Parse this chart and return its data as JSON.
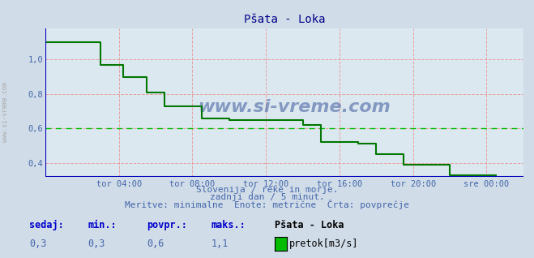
{
  "title": "Pšata - Loka",
  "bg_color": "#d0dce8",
  "plot_bg_color": "#dce8f0",
  "grid_color": "#e8a0a0",
  "axis_color": "#0000bb",
  "avg_line_color": "#00bb00",
  "avg_line_value": 0.6,
  "line_color": "#007700",
  "arrow_color": "#aa0000",
  "ylim": [
    0.32,
    1.18
  ],
  "yticks": [
    0.4,
    0.6,
    0.8,
    1.0
  ],
  "tick_label_color": "#4466aa",
  "xtick_labels": [
    "tor 04:00",
    "tor 08:00",
    "tor 12:00",
    "tor 16:00",
    "tor 20:00",
    "sre 00:00"
  ],
  "xtick_positions": [
    4,
    8,
    12,
    16,
    20,
    24
  ],
  "xlim": [
    0,
    26
  ],
  "subtitle1": "Slovenija / reke in morje.",
  "subtitle2": "zadnji dan / 5 minut.",
  "subtitle3": "Meritve: minimalne  Enote: metrične  Črta: povprečje",
  "legend_title": "Pšata - Loka",
  "legend_label": "pretok[m3/s]",
  "legend_color": "#00bb00",
  "stat_sedaj": "0,3",
  "stat_min": "0,3",
  "stat_povpr": "0,6",
  "stat_maks": "1,1",
  "watermark": "www.si-vreme.com",
  "side_label": "www.si-vreme.com",
  "x_data": [
    0.0,
    0.25,
    0.5,
    0.75,
    1.0,
    1.25,
    1.5,
    1.75,
    2.0,
    2.25,
    2.5,
    2.75,
    3.0,
    3.25,
    3.5,
    3.75,
    4.0,
    4.25,
    4.5,
    4.75,
    5.0,
    5.25,
    5.5,
    5.75,
    6.0,
    6.5,
    7.0,
    7.5,
    8.0,
    8.5,
    9.0,
    9.5,
    10.0,
    10.5,
    11.0,
    11.5,
    12.0,
    12.5,
    13.0,
    13.5,
    14.0,
    14.5,
    15.0,
    15.5,
    16.0,
    16.5,
    17.0,
    17.5,
    18.0,
    18.5,
    19.0,
    19.5,
    20.0,
    20.5,
    21.0,
    21.5,
    22.0,
    22.5,
    23.0,
    23.5,
    24.0,
    24.5
  ],
  "y_data": [
    1.1,
    1.1,
    1.1,
    1.1,
    1.1,
    1.1,
    1.1,
    1.1,
    1.1,
    1.1,
    1.1,
    1.1,
    0.97,
    0.97,
    0.97,
    0.97,
    0.97,
    0.9,
    0.9,
    0.9,
    0.9,
    0.9,
    0.81,
    0.81,
    0.81,
    0.73,
    0.73,
    0.73,
    0.73,
    0.66,
    0.66,
    0.66,
    0.65,
    0.65,
    0.65,
    0.65,
    0.65,
    0.65,
    0.65,
    0.65,
    0.62,
    0.62,
    0.52,
    0.52,
    0.52,
    0.52,
    0.51,
    0.51,
    0.45,
    0.45,
    0.45,
    0.39,
    0.39,
    0.39,
    0.39,
    0.39,
    0.33,
    0.33,
    0.33,
    0.33,
    0.33,
    0.33
  ]
}
